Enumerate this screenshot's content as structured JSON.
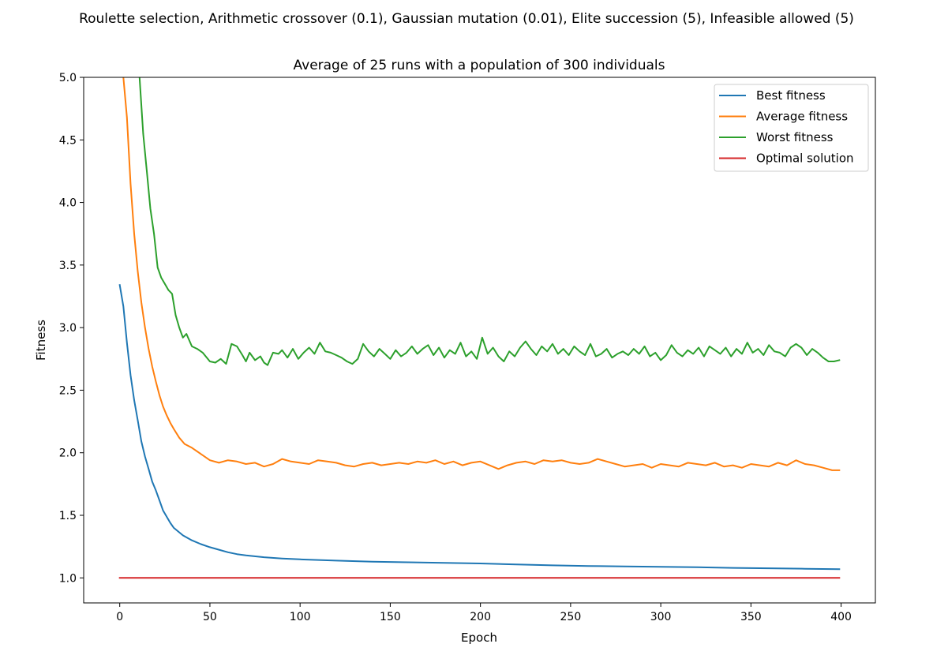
{
  "suptitle": "Roulette selection, Arithmetic crossover (0.1), Gaussian mutation (0.01), Elite succession (5), Infeasible allowed (5)",
  "chart_data": {
    "type": "line",
    "title": "Average of 25 runs with a population of 300 individuals",
    "xlabel": "Epoch",
    "ylabel": "Fitness",
    "xlim": [
      -20,
      419
    ],
    "ylim": [
      0.8,
      5.0
    ],
    "xticks": [
      0,
      50,
      100,
      150,
      200,
      250,
      300,
      350,
      400
    ],
    "xtick_labels": [
      "0",
      "50",
      "100",
      "150",
      "200",
      "250",
      "300",
      "350",
      "400"
    ],
    "yticks": [
      1.0,
      1.5,
      2.0,
      2.5,
      3.0,
      3.5,
      4.0,
      4.5,
      5.0
    ],
    "ytick_labels": [
      "1.0",
      "1.5",
      "2.0",
      "2.5",
      "3.0",
      "3.5",
      "4.0",
      "4.5",
      "5.0"
    ],
    "grid": false,
    "legend_position": "top-right",
    "series": [
      {
        "name": "Best fitness",
        "color": "#1f77b4",
        "x": [
          0,
          2,
          4,
          6,
          8,
          10,
          12,
          14,
          16,
          18,
          20,
          22,
          24,
          26,
          28,
          30,
          35,
          40,
          45,
          50,
          55,
          60,
          65,
          70,
          80,
          90,
          100,
          120,
          140,
          160,
          180,
          200,
          220,
          240,
          260,
          280,
          300,
          320,
          340,
          360,
          380,
          399
        ],
        "y": [
          3.34,
          3.17,
          2.88,
          2.62,
          2.42,
          2.26,
          2.09,
          1.97,
          1.87,
          1.77,
          1.7,
          1.62,
          1.54,
          1.49,
          1.44,
          1.4,
          1.34,
          1.3,
          1.27,
          1.245,
          1.225,
          1.205,
          1.19,
          1.18,
          1.165,
          1.155,
          1.148,
          1.138,
          1.13,
          1.125,
          1.12,
          1.115,
          1.107,
          1.1,
          1.095,
          1.092,
          1.088,
          1.085,
          1.08,
          1.077,
          1.073,
          1.07
        ]
      },
      {
        "name": "Average fitness",
        "color": "#ff7f0e",
        "x": [
          2,
          4,
          6,
          8,
          10,
          12,
          14,
          16,
          18,
          20,
          22,
          24,
          26,
          28,
          30,
          33,
          36,
          40,
          45,
          50,
          55,
          60,
          65,
          70,
          75,
          80,
          85,
          90,
          95,
          100,
          105,
          110,
          115,
          120,
          125,
          130,
          135,
          140,
          145,
          150,
          155,
          160,
          165,
          170,
          175,
          180,
          185,
          190,
          195,
          200,
          205,
          210,
          215,
          220,
          225,
          230,
          235,
          240,
          245,
          250,
          255,
          260,
          265,
          270,
          275,
          280,
          285,
          290,
          295,
          300,
          305,
          310,
          315,
          320,
          325,
          330,
          335,
          340,
          345,
          350,
          355,
          360,
          365,
          370,
          375,
          380,
          385,
          390,
          395,
          399
        ],
        "y": [
          5.0,
          4.68,
          4.15,
          3.75,
          3.45,
          3.2,
          3.0,
          2.83,
          2.69,
          2.57,
          2.46,
          2.37,
          2.3,
          2.24,
          2.19,
          2.12,
          2.07,
          2.04,
          1.99,
          1.94,
          1.92,
          1.94,
          1.93,
          1.91,
          1.92,
          1.89,
          1.91,
          1.95,
          1.93,
          1.92,
          1.91,
          1.94,
          1.93,
          1.92,
          1.9,
          1.89,
          1.91,
          1.92,
          1.9,
          1.91,
          1.92,
          1.91,
          1.93,
          1.92,
          1.94,
          1.91,
          1.93,
          1.9,
          1.92,
          1.93,
          1.9,
          1.87,
          1.9,
          1.92,
          1.93,
          1.91,
          1.94,
          1.93,
          1.94,
          1.92,
          1.91,
          1.92,
          1.95,
          1.93,
          1.91,
          1.89,
          1.9,
          1.91,
          1.88,
          1.91,
          1.9,
          1.89,
          1.92,
          1.91,
          1.9,
          1.92,
          1.89,
          1.9,
          1.88,
          1.91,
          1.9,
          1.89,
          1.92,
          1.9,
          1.94,
          1.91,
          1.9,
          1.88,
          1.86,
          1.86
        ]
      },
      {
        "name": "Worst fitness",
        "color": "#2ca02c",
        "x": [
          11,
          13,
          15,
          17,
          19,
          21,
          23,
          25,
          27,
          29,
          31,
          33,
          35,
          37,
          40,
          43,
          46,
          50,
          53,
          56,
          59,
          62,
          65,
          68,
          70,
          72,
          75,
          78,
          80,
          82,
          85,
          88,
          90,
          93,
          96,
          99,
          102,
          105,
          108,
          111,
          114,
          117,
          120,
          123,
          126,
          129,
          132,
          135,
          138,
          141,
          144,
          147,
          150,
          153,
          156,
          159,
          162,
          165,
          168,
          171,
          174,
          177,
          180,
          183,
          186,
          189,
          192,
          195,
          198,
          201,
          204,
          207,
          210,
          213,
          216,
          219,
          222,
          225,
          228,
          231,
          234,
          237,
          240,
          243,
          246,
          249,
          252,
          255,
          258,
          261,
          264,
          267,
          270,
          273,
          276,
          279,
          282,
          285,
          288,
          291,
          294,
          297,
          300,
          303,
          306,
          309,
          312,
          315,
          318,
          321,
          324,
          327,
          330,
          333,
          336,
          339,
          342,
          345,
          348,
          351,
          354,
          357,
          360,
          363,
          366,
          369,
          372,
          375,
          378,
          381,
          384,
          387,
          390,
          393,
          396,
          399
        ],
        "y": [
          5.0,
          4.55,
          4.25,
          3.95,
          3.75,
          3.48,
          3.4,
          3.35,
          3.3,
          3.27,
          3.1,
          3.0,
          2.92,
          2.95,
          2.85,
          2.83,
          2.8,
          2.73,
          2.72,
          2.75,
          2.71,
          2.87,
          2.85,
          2.78,
          2.73,
          2.8,
          2.74,
          2.77,
          2.72,
          2.7,
          2.8,
          2.79,
          2.82,
          2.76,
          2.83,
          2.75,
          2.8,
          2.84,
          2.79,
          2.88,
          2.81,
          2.8,
          2.78,
          2.76,
          2.73,
          2.71,
          2.75,
          2.87,
          2.81,
          2.77,
          2.83,
          2.79,
          2.75,
          2.82,
          2.77,
          2.8,
          2.85,
          2.79,
          2.83,
          2.86,
          2.78,
          2.84,
          2.76,
          2.82,
          2.79,
          2.88,
          2.77,
          2.81,
          2.75,
          2.92,
          2.79,
          2.84,
          2.77,
          2.73,
          2.81,
          2.77,
          2.84,
          2.89,
          2.83,
          2.78,
          2.85,
          2.81,
          2.87,
          2.79,
          2.83,
          2.78,
          2.85,
          2.81,
          2.78,
          2.87,
          2.77,
          2.79,
          2.83,
          2.76,
          2.79,
          2.81,
          2.78,
          2.83,
          2.79,
          2.85,
          2.77,
          2.8,
          2.74,
          2.78,
          2.86,
          2.8,
          2.77,
          2.82,
          2.79,
          2.84,
          2.77,
          2.85,
          2.82,
          2.79,
          2.84,
          2.77,
          2.83,
          2.79,
          2.88,
          2.8,
          2.83,
          2.78,
          2.86,
          2.81,
          2.8,
          2.77,
          2.84,
          2.87,
          2.84,
          2.78,
          2.83,
          2.8,
          2.76,
          2.73,
          2.73,
          2.74
        ]
      },
      {
        "name": "Optimal solution",
        "color": "#d62728",
        "x": [
          0,
          399
        ],
        "y": [
          1.0,
          1.0
        ]
      }
    ]
  }
}
